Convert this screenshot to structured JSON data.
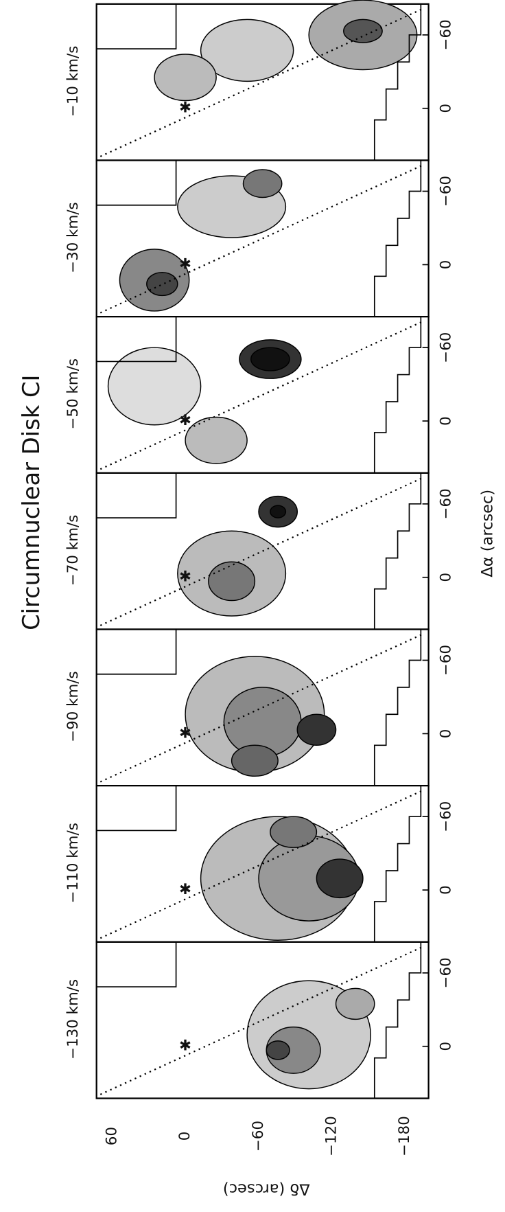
{
  "title": "Circumnuclear Disk  CI",
  "panels": [
    {
      "label": "−10 km/s"
    },
    {
      "label": "−30 km/s"
    },
    {
      "label": "−50 km/s"
    },
    {
      "label": "−70 km/s"
    },
    {
      "label": "−90 km/s"
    },
    {
      "label": "−110 km/s"
    },
    {
      "label": "−130 km/s"
    }
  ],
  "x_axis": {
    "label": "Δα (arcsec)",
    "ticks": [
      "0",
      "−60"
    ]
  },
  "y_axis": {
    "label": "Δδ (arcsec)",
    "ticks": [
      "60",
      "0",
      "−60",
      "−120",
      "−180"
    ]
  }
}
